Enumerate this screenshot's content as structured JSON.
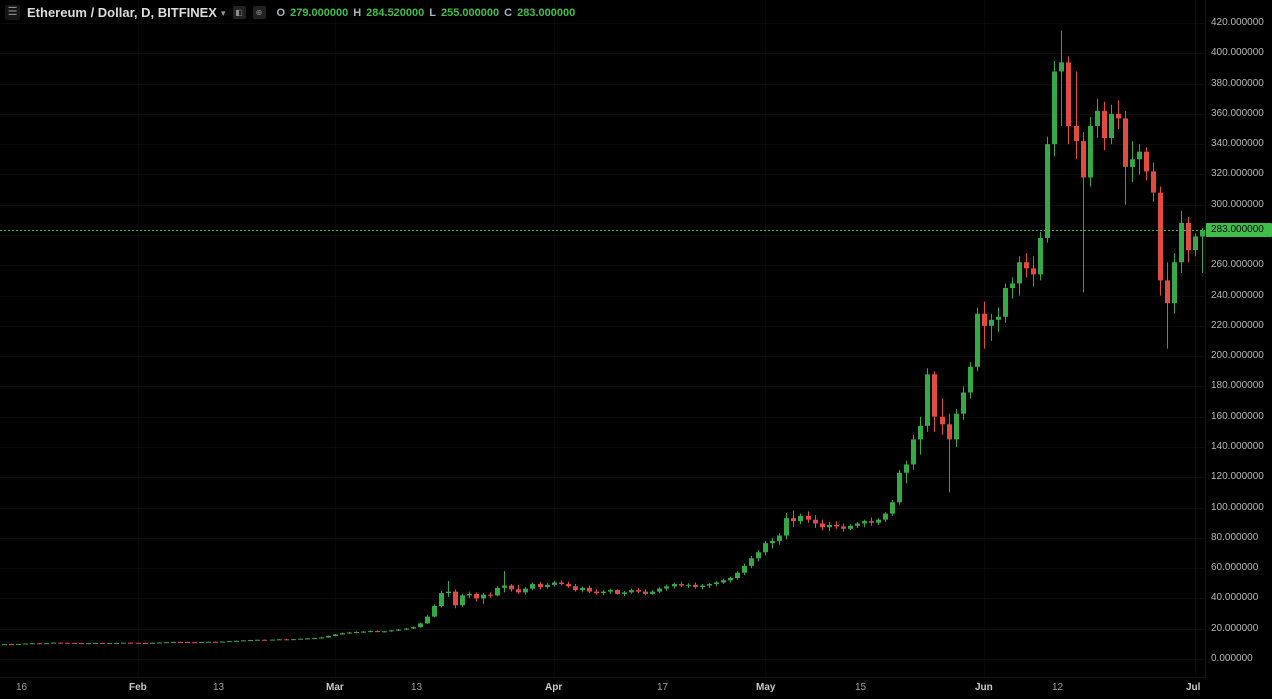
{
  "header": {
    "menu_glyph": "☰",
    "symbol_title": "Ethereum / Dollar, D, BITFINEX",
    "dropdown_caret": "▾",
    "icons": [
      {
        "name": "chart-properties-icon",
        "glyph": "◧"
      },
      {
        "name": "compare-icon",
        "glyph": "⊕"
      }
    ],
    "ohlc": {
      "o_label": "O",
      "o_value": "279.000000",
      "h_label": "H",
      "h_value": "284.520000",
      "l_label": "L",
      "l_value": "255.000000",
      "c_label": "C",
      "c_value": "283.000000"
    }
  },
  "colors": {
    "background": "#000000",
    "up": "#35a947",
    "down": "#e24a42",
    "last_price": "#3fbf4a",
    "axis_text": "#b8b8b8",
    "title_text": "#dcdcdc"
  },
  "chart_data": {
    "type": "candlestick",
    "title": "Ethereum / Dollar",
    "interval": "D",
    "exchange": "BITFINEX",
    "last_price": 283.0,
    "last_price_label": "283.000000",
    "y_axis": {
      "min": 0,
      "max": 420,
      "step": 20,
      "decimals": 6
    },
    "price_ticks": [
      "0.000000",
      "20.000000",
      "40.000000",
      "60.000000",
      "80.000000",
      "100.000000",
      "120.000000",
      "140.000000",
      "160.000000",
      "180.000000",
      "200.000000",
      "220.000000",
      "240.000000",
      "260.000000",
      "280.000000",
      "300.000000",
      "320.000000",
      "340.000000",
      "360.000000",
      "380.000000",
      "400.000000",
      "420.000000"
    ],
    "time_ticks": [
      {
        "index": 3,
        "label": "16",
        "month": false
      },
      {
        "index": 19,
        "label": "Feb",
        "month": true
      },
      {
        "index": 31,
        "label": "13",
        "month": false
      },
      {
        "index": 47,
        "label": "Mar",
        "month": true
      },
      {
        "index": 59,
        "label": "13",
        "month": false
      },
      {
        "index": 78,
        "label": "Apr",
        "month": true
      },
      {
        "index": 94,
        "label": "17",
        "month": false
      },
      {
        "index": 108,
        "label": "May",
        "month": true
      },
      {
        "index": 122,
        "label": "15",
        "month": false
      },
      {
        "index": 139,
        "label": "Jun",
        "month": true
      },
      {
        "index": 150,
        "label": "12",
        "month": false
      },
      {
        "index": 169,
        "label": "Jul",
        "month": true
      }
    ],
    "candles": [
      [
        9.7,
        9.9,
        9.5,
        9.8
      ],
      [
        9.8,
        10.0,
        9.6,
        9.7
      ],
      [
        9.7,
        9.9,
        9.5,
        9.9
      ],
      [
        9.9,
        10.3,
        9.7,
        10.2
      ],
      [
        10.2,
        10.5,
        10.0,
        10.4
      ],
      [
        10.4,
        10.6,
        10.1,
        10.2
      ],
      [
        10.2,
        10.5,
        10.0,
        10.4
      ],
      [
        10.4,
        10.9,
        10.3,
        10.8
      ],
      [
        10.8,
        11.0,
        10.5,
        10.7
      ],
      [
        10.7,
        10.9,
        10.4,
        10.6
      ],
      [
        10.6,
        10.8,
        10.3,
        10.5
      ],
      [
        10.5,
        10.7,
        10.2,
        10.4
      ],
      [
        10.4,
        10.6,
        10.2,
        10.5
      ],
      [
        10.5,
        10.7,
        10.3,
        10.6
      ],
      [
        10.6,
        10.7,
        10.3,
        10.4
      ],
      [
        10.4,
        10.6,
        10.2,
        10.5
      ],
      [
        10.5,
        10.7,
        10.3,
        10.6
      ],
      [
        10.6,
        10.9,
        10.4,
        10.8
      ],
      [
        10.8,
        11.0,
        10.5,
        10.7
      ],
      [
        10.7,
        10.9,
        10.4,
        10.6
      ],
      [
        10.6,
        10.8,
        10.3,
        10.5
      ],
      [
        10.5,
        10.8,
        10.4,
        10.7
      ],
      [
        10.7,
        11.0,
        10.5,
        10.9
      ],
      [
        10.9,
        11.2,
        10.7,
        11.1
      ],
      [
        11.1,
        11.4,
        10.9,
        11.3
      ],
      [
        11.3,
        11.5,
        11.0,
        11.2
      ],
      [
        11.2,
        11.4,
        10.9,
        11.1
      ],
      [
        11.1,
        11.3,
        10.8,
        11.0
      ],
      [
        11.0,
        11.3,
        10.9,
        11.2
      ],
      [
        11.2,
        11.5,
        11.0,
        11.4
      ],
      [
        11.4,
        11.6,
        11.1,
        11.3
      ],
      [
        11.3,
        11.6,
        11.1,
        11.5
      ],
      [
        11.5,
        11.9,
        11.3,
        11.8
      ],
      [
        11.8,
        12.1,
        11.6,
        12.0
      ],
      [
        12.0,
        12.4,
        11.8,
        12.3
      ],
      [
        12.3,
        12.6,
        12.0,
        12.5
      ],
      [
        12.5,
        12.8,
        12.2,
        12.7
      ],
      [
        12.7,
        12.9,
        12.3,
        12.6
      ],
      [
        12.6,
        12.9,
        12.4,
        12.8
      ],
      [
        12.8,
        13.2,
        12.6,
        13.0
      ],
      [
        13.0,
        13.3,
        12.7,
        12.9
      ],
      [
        12.9,
        13.2,
        12.6,
        13.1
      ],
      [
        13.1,
        13.6,
        12.9,
        13.4
      ],
      [
        13.4,
        13.8,
        13.1,
        13.6
      ],
      [
        13.6,
        14.0,
        13.3,
        13.8
      ],
      [
        13.8,
        14.5,
        13.6,
        14.2
      ],
      [
        14.2,
        15.5,
        14.0,
        15.2
      ],
      [
        15.2,
        16.5,
        15.0,
        16.2
      ],
      [
        16.2,
        17.5,
        16.0,
        17.0
      ],
      [
        17.0,
        18.0,
        16.6,
        17.5
      ],
      [
        17.5,
        18.2,
        17.0,
        17.8
      ],
      [
        17.8,
        18.5,
        17.3,
        18.1
      ],
      [
        18.1,
        18.8,
        17.7,
        18.4
      ],
      [
        18.4,
        18.9,
        17.8,
        18.0
      ],
      [
        18.0,
        18.6,
        17.5,
        18.3
      ],
      [
        18.3,
        19.2,
        18.0,
        18.9
      ],
      [
        18.9,
        19.8,
        18.5,
        19.4
      ],
      [
        19.4,
        20.5,
        19.1,
        20.1
      ],
      [
        20.1,
        21.5,
        19.8,
        21.0
      ],
      [
        21.0,
        24.0,
        20.6,
        23.5
      ],
      [
        23.5,
        29.0,
        23.0,
        28.0
      ],
      [
        28.0,
        36.0,
        27.5,
        35.0
      ],
      [
        35.0,
        45.0,
        34.0,
        43.5
      ],
      [
        43.5,
        51.5,
        41.0,
        44.5
      ],
      [
        44.5,
        46.0,
        33.5,
        35.5
      ],
      [
        35.5,
        43.0,
        34.5,
        42.0
      ],
      [
        42.0,
        44.5,
        40.0,
        43.0
      ],
      [
        43.0,
        44.0,
        38.0,
        40.0
      ],
      [
        40.0,
        43.5,
        36.5,
        42.5
      ],
      [
        42.5,
        44.0,
        40.5,
        42.0
      ],
      [
        42.0,
        48.0,
        41.5,
        47.0
      ],
      [
        47.0,
        58.0,
        44.0,
        48.5
      ],
      [
        48.5,
        49.5,
        44.5,
        46.0
      ],
      [
        46.0,
        49.0,
        43.0,
        44.0
      ],
      [
        44.0,
        47.5,
        42.5,
        46.5
      ],
      [
        46.5,
        50.5,
        45.5,
        49.5
      ],
      [
        49.5,
        51.0,
        46.0,
        47.5
      ],
      [
        47.5,
        50.0,
        46.5,
        49.0
      ],
      [
        49.0,
        51.5,
        48.0,
        50.5
      ],
      [
        50.5,
        52.0,
        48.5,
        49.5
      ],
      [
        49.5,
        51.0,
        47.0,
        48.0
      ],
      [
        48.0,
        49.5,
        44.5,
        45.5
      ],
      [
        45.5,
        48.0,
        44.0,
        47.0
      ],
      [
        47.0,
        48.5,
        43.5,
        44.5
      ],
      [
        44.5,
        46.0,
        42.5,
        43.5
      ],
      [
        43.5,
        45.5,
        42.0,
        44.5
      ],
      [
        44.5,
        46.5,
        43.0,
        45.5
      ],
      [
        45.5,
        46.0,
        42.5,
        43.0
      ],
      [
        43.0,
        45.0,
        41.5,
        44.0
      ],
      [
        44.0,
        46.5,
        43.0,
        45.5
      ],
      [
        45.5,
        47.0,
        43.5,
        44.5
      ],
      [
        44.5,
        46.0,
        42.0,
        43.0
      ],
      [
        43.0,
        45.5,
        42.5,
        44.5
      ],
      [
        44.5,
        47.5,
        43.5,
        46.5
      ],
      [
        46.5,
        49.0,
        45.0,
        48.0
      ],
      [
        48.0,
        50.5,
        46.5,
        49.5
      ],
      [
        49.5,
        51.0,
        47.5,
        48.5
      ],
      [
        48.5,
        50.0,
        47.0,
        49.0
      ],
      [
        49.0,
        50.5,
        46.5,
        47.5
      ],
      [
        47.5,
        49.5,
        46.0,
        48.5
      ],
      [
        48.5,
        50.0,
        47.0,
        49.5
      ],
      [
        49.5,
        51.5,
        48.0,
        50.5
      ],
      [
        50.5,
        53.0,
        49.5,
        52.0
      ],
      [
        52.0,
        54.5,
        50.5,
        53.5
      ],
      [
        53.5,
        58.0,
        52.5,
        57.0
      ],
      [
        57.0,
        63.0,
        55.5,
        61.5
      ],
      [
        61.5,
        68.0,
        60.0,
        66.5
      ],
      [
        66.5,
        72.0,
        64.5,
        70.5
      ],
      [
        70.5,
        78.0,
        68.5,
        76.5
      ],
      [
        76.5,
        80.0,
        73.0,
        78.0
      ],
      [
        78.0,
        83.0,
        75.5,
        81.5
      ],
      [
        81.5,
        96.5,
        79.0,
        93.0
      ],
      [
        93.0,
        98.0,
        87.0,
        91.0
      ],
      [
        91.0,
        96.0,
        89.0,
        94.5
      ],
      [
        94.5,
        97.5,
        90.0,
        92.0
      ],
      [
        92.0,
        95.0,
        86.5,
        89.5
      ],
      [
        89.5,
        92.0,
        85.0,
        87.0
      ],
      [
        87.0,
        90.5,
        84.5,
        88.5
      ],
      [
        88.5,
        91.0,
        86.0,
        87.5
      ],
      [
        87.5,
        89.5,
        84.0,
        86.0
      ],
      [
        86.0,
        89.0,
        85.0,
        88.0
      ],
      [
        88.0,
        90.5,
        86.5,
        89.5
      ],
      [
        89.5,
        92.0,
        87.0,
        91.0
      ],
      [
        91.0,
        93.5,
        88.0,
        90.0
      ],
      [
        90.0,
        93.0,
        88.5,
        92.0
      ],
      [
        92.0,
        97.0,
        90.5,
        96.0
      ],
      [
        96.0,
        105.0,
        94.5,
        103.5
      ],
      [
        103.5,
        125.0,
        102.0,
        123.0
      ],
      [
        123.0,
        131.0,
        116.0,
        128.5
      ],
      [
        128.5,
        148.0,
        125.0,
        145.0
      ],
      [
        145.0,
        160.0,
        135.0,
        154.0
      ],
      [
        154.0,
        192.0,
        150.0,
        188.0
      ],
      [
        188.0,
        190.0,
        150.0,
        160.0
      ],
      [
        160.0,
        172.0,
        148.0,
        155.0
      ],
      [
        155.0,
        162.0,
        110.0,
        145.0
      ],
      [
        145.0,
        165.0,
        140.0,
        162.0
      ],
      [
        162.0,
        180.0,
        158.0,
        176.0
      ],
      [
        176.0,
        196.0,
        172.0,
        193.0
      ],
      [
        193.0,
        232.0,
        190.0,
        228.0
      ],
      [
        228.0,
        236.0,
        205.0,
        220.0
      ],
      [
        220.0,
        228.0,
        210.0,
        224.0
      ],
      [
        224.0,
        232.0,
        216.0,
        226.0
      ],
      [
        226.0,
        248.0,
        222.0,
        245.0
      ],
      [
        245.0,
        252.0,
        238.0,
        248.0
      ],
      [
        248.0,
        266.0,
        240.0,
        262.0
      ],
      [
        262.0,
        268.0,
        252.0,
        258.0
      ],
      [
        258.0,
        266.0,
        246.0,
        254.0
      ],
      [
        254.0,
        282.0,
        250.0,
        278.0
      ],
      [
        278.0,
        345.0,
        275.0,
        340.0
      ],
      [
        340.0,
        395.0,
        332.0,
        388.0
      ],
      [
        388.0,
        415.0,
        352.0,
        394.0
      ],
      [
        394.0,
        398.0,
        340.0,
        352.0
      ],
      [
        352.0,
        388.0,
        330.0,
        342.0
      ],
      [
        342.0,
        348.0,
        242.0,
        318.0
      ],
      [
        318.0,
        358.0,
        312.0,
        352.0
      ],
      [
        352.0,
        370.0,
        344.0,
        362.0
      ],
      [
        362.0,
        368.0,
        336.0,
        344.0
      ],
      [
        344.0,
        366.0,
        340.0,
        360.0
      ],
      [
        360.0,
        369.0,
        350.0,
        357.0
      ],
      [
        357.0,
        362.0,
        300.0,
        325.0
      ],
      [
        325.0,
        342.0,
        315.0,
        330.0
      ],
      [
        330.0,
        340.0,
        320.0,
        335.0
      ],
      [
        335.0,
        338.0,
        316.0,
        322.0
      ],
      [
        322.0,
        328.0,
        302.0,
        308.0
      ],
      [
        308.0,
        312.0,
        240.0,
        250.0
      ],
      [
        250.0,
        262.0,
        205.0,
        235.0
      ],
      [
        235.0,
        268.0,
        228.0,
        262.0
      ],
      [
        262.0,
        296.0,
        255.0,
        288.0
      ],
      [
        288.0,
        292.0,
        262.0,
        270.0
      ],
      [
        270.0,
        281.0,
        266.0,
        279.0
      ],
      [
        279.0,
        284.52,
        255.0,
        283.0
      ]
    ]
  }
}
